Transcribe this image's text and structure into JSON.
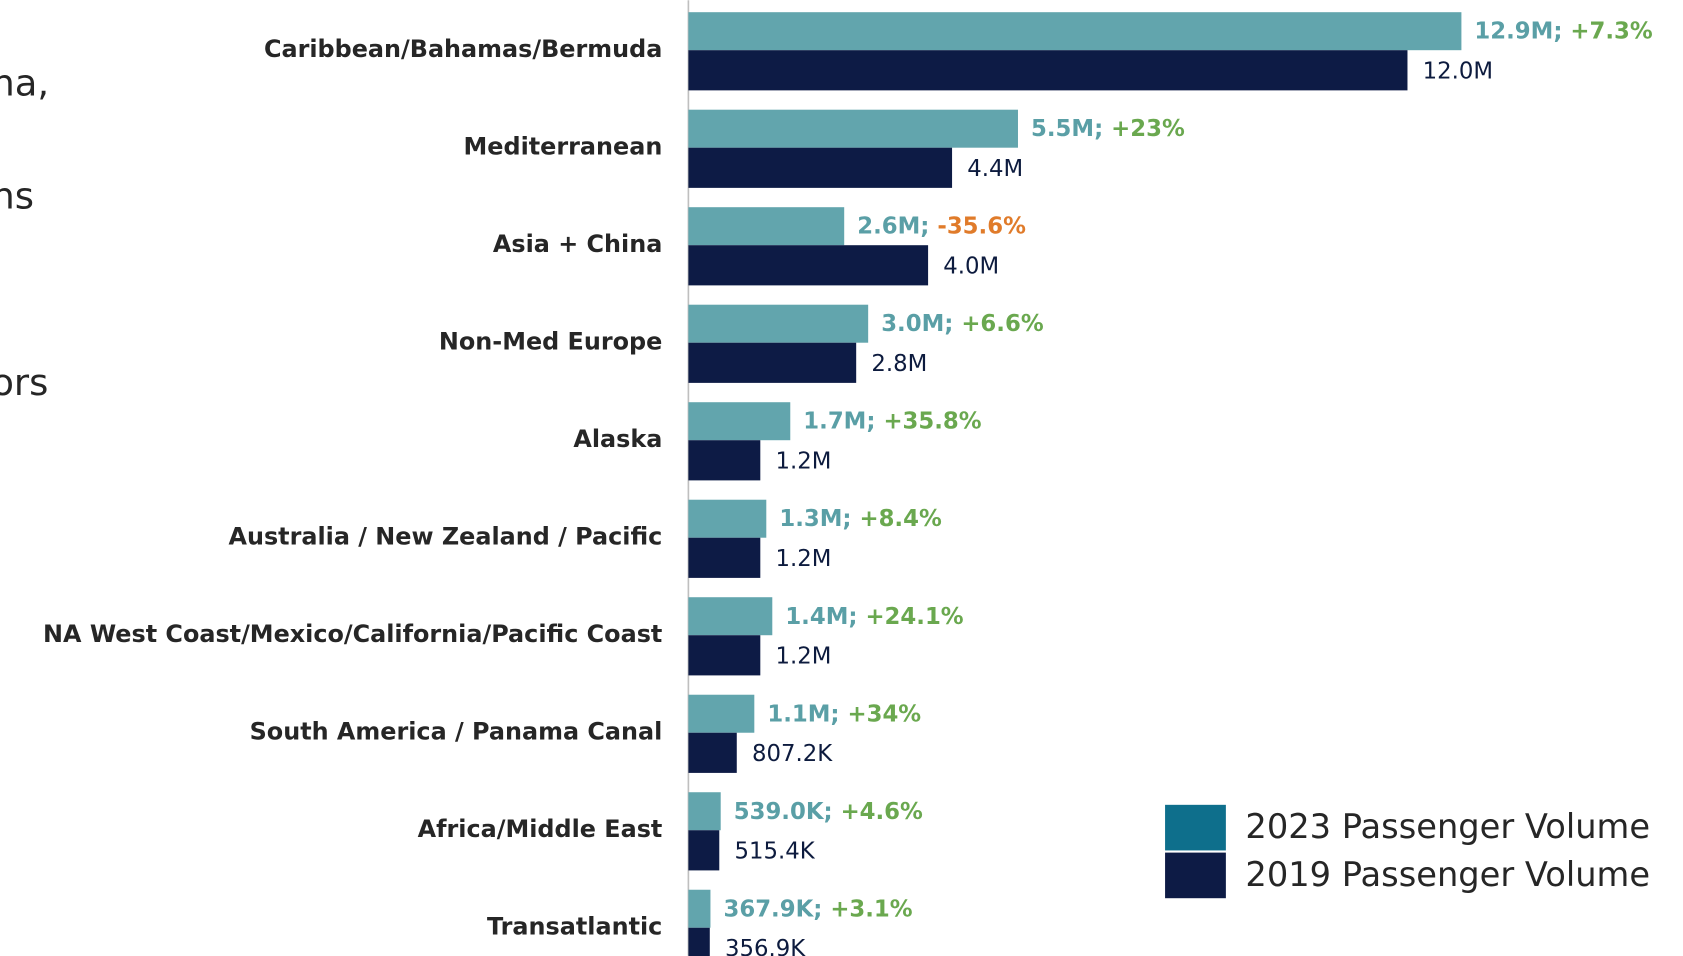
{
  "cropped_text": [
    "na,",
    "ns",
    "ors"
  ],
  "chart_data": {
    "type": "hbar",
    "categories": [
      "Caribbean/Bahamas/Bermuda",
      "Mediterranean",
      "Asia + China",
      "Non-Med Europe",
      "Alaska",
      "Australia / New Zealand / Pacific",
      "NA West Coast/Mexico/California/Pacific Coast",
      "South America / Panama Canal",
      "Africa/Middle East",
      "Transatlantic"
    ],
    "series": [
      {
        "name": "2023 Passenger Volume",
        "color": "#62a5ad",
        "legend_color": "#0e6f8c",
        "values": [
          12900000,
          5500000,
          2600000,
          3000000,
          1700000,
          1300000,
          1400000,
          1100000,
          539000,
          367900
        ],
        "value_labels": [
          "12.9M",
          "5.5M",
          "2.6M",
          "3.0M",
          "1.7M",
          "1.3M",
          "1.4M",
          "1.1M",
          "539.0K",
          "367.9K"
        ],
        "changes": [
          7.3,
          23,
          -35.6,
          6.6,
          35.8,
          8.4,
          24.1,
          34,
          4.6,
          3.1
        ],
        "change_labels": [
          "+7.3%",
          "+23%",
          "-35.6%",
          "+6.6%",
          "+35.8%",
          "+8.4%",
          "+24.1%",
          "+34%",
          "+4.6%",
          "+3.1%"
        ]
      },
      {
        "name": "2019 Passenger Volume",
        "color": "#0d1b45",
        "legend_color": "#0d1b45",
        "values": [
          12000000,
          4400000,
          4000000,
          2800000,
          1200000,
          1200000,
          1200000,
          807200,
          515400,
          356900
        ],
        "value_labels": [
          "12.0M",
          "4.4M",
          "4.0M",
          "2.8M",
          "1.2M",
          "1.2M",
          "1.2M",
          "807.2K",
          "515.4K",
          "356.9K"
        ]
      }
    ],
    "label_separator": "; ",
    "change_colors": {
      "positive": "#6aa84f",
      "negative": "#e07b2a"
    },
    "xlim": [
      0,
      16000000
    ],
    "legend": "lower right"
  }
}
